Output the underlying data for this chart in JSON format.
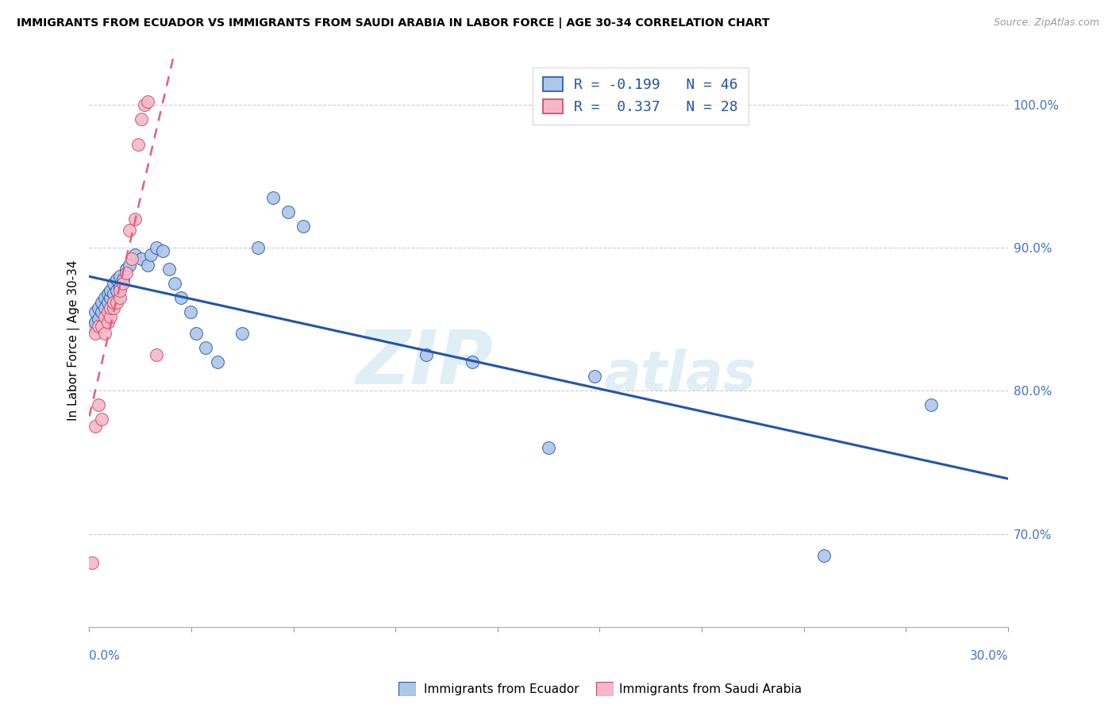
{
  "title": "IMMIGRANTS FROM ECUADOR VS IMMIGRANTS FROM SAUDI ARABIA IN LABOR FORCE | AGE 30-34 CORRELATION CHART",
  "source": "Source: ZipAtlas.com",
  "ylabel": "In Labor Force | Age 30-34",
  "legend_ecuador": "R = -0.199   N = 46",
  "legend_saudi": "R =  0.337   N = 28",
  "legend_label_ecuador": "Immigrants from Ecuador",
  "legend_label_saudi": "Immigrants from Saudi Arabia",
  "R_ecuador": -0.199,
  "N_ecuador": 46,
  "R_saudi": 0.337,
  "N_saudi": 28,
  "color_ecuador": "#aec6e8",
  "color_saudi": "#f5b8c8",
  "trendline_ecuador": "#2255aa",
  "trendline_saudi": "#e06080",
  "xmin": 0.0,
  "xmax": 0.3,
  "ymin": 0.635,
  "ymax": 1.035,
  "yticks": [
    0.7,
    0.8,
    0.9,
    1.0
  ],
  "ytick_labels": [
    "70.0%",
    "80.0%",
    "90.0%",
    "100.0%"
  ],
  "ecuador_x": [
    0.001,
    0.002,
    0.002,
    0.003,
    0.003,
    0.004,
    0.004,
    0.005,
    0.005,
    0.006,
    0.006,
    0.007,
    0.007,
    0.008,
    0.008,
    0.009,
    0.009,
    0.01,
    0.01,
    0.011,
    0.012,
    0.013,
    0.015,
    0.017,
    0.019,
    0.02,
    0.022,
    0.024,
    0.026,
    0.028,
    0.03,
    0.033,
    0.035,
    0.038,
    0.042,
    0.05,
    0.055,
    0.06,
    0.065,
    0.07,
    0.11,
    0.125,
    0.15,
    0.165,
    0.24,
    0.275
  ],
  "ecuador_y": [
    0.845,
    0.848,
    0.855,
    0.85,
    0.858,
    0.855,
    0.862,
    0.858,
    0.865,
    0.862,
    0.868,
    0.865,
    0.87,
    0.868,
    0.875,
    0.87,
    0.878,
    0.872,
    0.88,
    0.878,
    0.885,
    0.888,
    0.895,
    0.892,
    0.888,
    0.895,
    0.9,
    0.898,
    0.885,
    0.875,
    0.865,
    0.855,
    0.84,
    0.83,
    0.82,
    0.84,
    0.9,
    0.935,
    0.925,
    0.915,
    0.825,
    0.82,
    0.76,
    0.81,
    0.685,
    0.79
  ],
  "saudi_x": [
    0.001,
    0.002,
    0.002,
    0.003,
    0.003,
    0.004,
    0.004,
    0.005,
    0.005,
    0.006,
    0.006,
    0.007,
    0.007,
    0.008,
    0.008,
    0.009,
    0.01,
    0.01,
    0.011,
    0.012,
    0.013,
    0.014,
    0.015,
    0.016,
    0.017,
    0.018,
    0.019,
    0.022
  ],
  "saudi_y": [
    0.68,
    0.775,
    0.84,
    0.79,
    0.845,
    0.78,
    0.845,
    0.84,
    0.852,
    0.848,
    0.855,
    0.852,
    0.858,
    0.858,
    0.862,
    0.862,
    0.865,
    0.87,
    0.875,
    0.882,
    0.912,
    0.892,
    0.92,
    0.972,
    0.99,
    1.0,
    1.002,
    0.825
  ]
}
